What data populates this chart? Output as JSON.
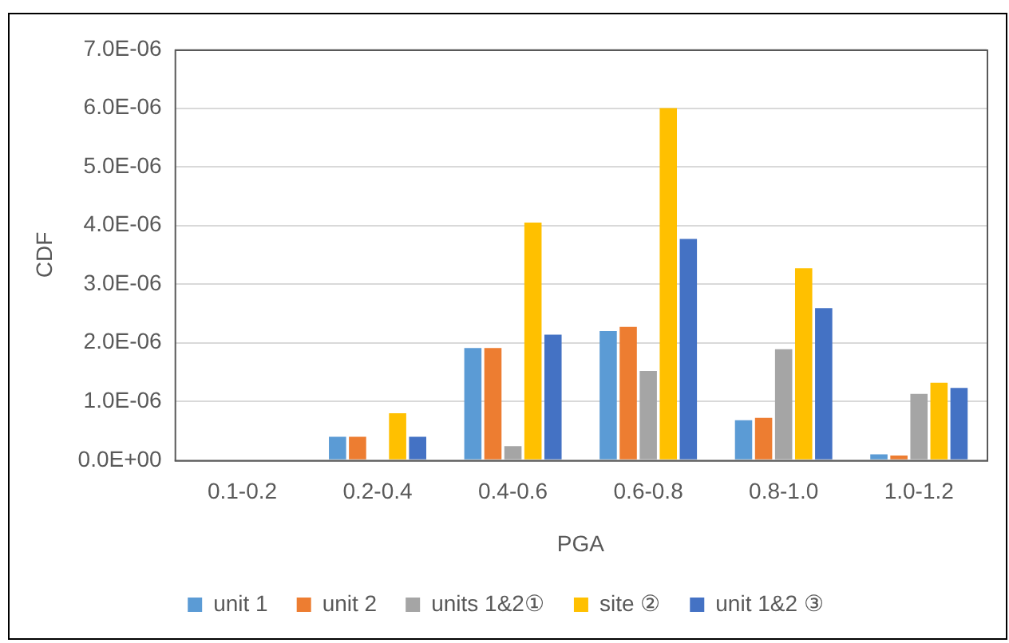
{
  "chart_data": {
    "type": "bar",
    "xlabel": "PGA",
    "ylabel": "CDF",
    "categories": [
      "0.1-0.2",
      "0.2-0.4",
      "0.4-0.6",
      "0.6-0.8",
      "0.8-1.0",
      "1.0-1.2"
    ],
    "series": [
      {
        "name": "unit 1",
        "color": "#5b9bd5",
        "values": [
          0,
          4e-07,
          1.91e-06,
          2.2e-06,
          6.8e-07,
          1e-07
        ]
      },
      {
        "name": "unit 2",
        "color": "#ed7d31",
        "values": [
          0,
          4e-07,
          1.91e-06,
          2.27e-06,
          7.2e-07,
          8e-08
        ]
      },
      {
        "name": "units 1&2①",
        "color": "#a5a5a5",
        "values": [
          0,
          0,
          2.4e-07,
          1.52e-06,
          1.89e-06,
          1.13e-06
        ]
      },
      {
        "name": "site ②",
        "color": "#ffc000",
        "values": [
          0,
          8e-07,
          4.05e-06,
          6e-06,
          3.27e-06,
          1.32e-06
        ]
      },
      {
        "name": "unit 1&2 ③",
        "color": "#4472c4",
        "values": [
          0,
          4e-07,
          2.14e-06,
          3.77e-06,
          2.59e-06,
          1.23e-06
        ]
      }
    ],
    "ylim": [
      0,
      7e-06
    ],
    "yticks": [
      {
        "value": 0,
        "label": "0.0E+00"
      },
      {
        "value": 1e-06,
        "label": "1.0E-06"
      },
      {
        "value": 2e-06,
        "label": "2.0E-06"
      },
      {
        "value": 3e-06,
        "label": "3.0E-06"
      },
      {
        "value": 4e-06,
        "label": "4.0E-06"
      },
      {
        "value": 5e-06,
        "label": "5.0E-06"
      },
      {
        "value": 6e-06,
        "label": "6.0E-06"
      },
      {
        "value": 7e-06,
        "label": "7.0E-06"
      }
    ],
    "grid": "y",
    "legend": "bottom"
  }
}
